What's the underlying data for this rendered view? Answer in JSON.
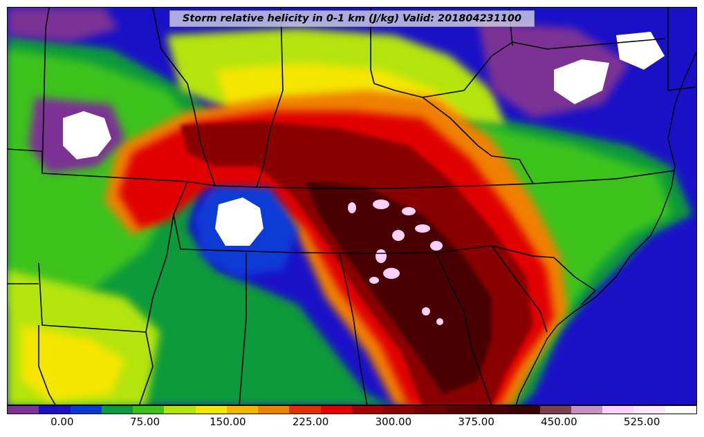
{
  "title": "Storm relative helicity in 0-1 km (J/kg) Valid: 201804231100",
  "colorbar": {
    "unit": "J/kg",
    "min": -50,
    "max": 575,
    "step": 25,
    "colors": [
      "#7b3294",
      "#1a10c8",
      "#0a3ad6",
      "#0c9a3a",
      "#3cc21a",
      "#b4e410",
      "#f5e600",
      "#f5b400",
      "#f08000",
      "#e03000",
      "#e00000",
      "#a00000",
      "#8a0000",
      "#700000",
      "#5a0000",
      "#480000",
      "#380000",
      "#7a4050",
      "#c890c0",
      "#ffd0f8",
      "#ffe8ff",
      "#ffffff"
    ],
    "ticks": [
      {
        "value": 0,
        "label": "0.00"
      },
      {
        "value": 75,
        "label": "75.00"
      },
      {
        "value": 150,
        "label": "150.00"
      },
      {
        "value": 225,
        "label": "225.00"
      },
      {
        "value": 300,
        "label": "300.00"
      },
      {
        "value": 375,
        "label": "375.00"
      },
      {
        "value": 450,
        "label": "450.00"
      },
      {
        "value": 525,
        "label": "525.00"
      }
    ]
  },
  "palette": {
    "purple": "#7b3294",
    "deep_blue": "#1a10c8",
    "blue": "#0a3ad6",
    "green": "#0c9a3a",
    "light_green": "#3cc21a",
    "lime": "#b4e410",
    "yellow": "#f5e600",
    "gold": "#f5b400",
    "orange": "#f08000",
    "red": "#e00000",
    "dark_red": "#8a0000",
    "maroon": "#480000",
    "pink": "#ffd0f8",
    "white": "#ffffff"
  }
}
